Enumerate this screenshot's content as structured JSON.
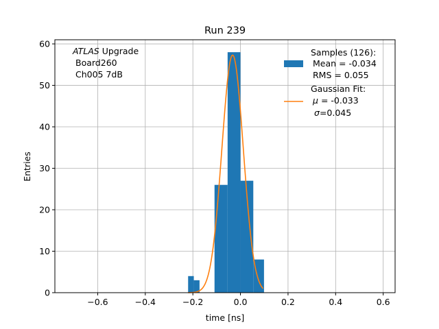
{
  "chart_data": {
    "type": "bar",
    "title": "Run 239",
    "xlabel": "time [ns]",
    "ylabel": "Entries",
    "xlim": [
      -0.78,
      0.65
    ],
    "ylim": [
      0,
      61
    ],
    "x_ticks": [
      -0.6,
      -0.4,
      -0.2,
      0.0,
      0.2,
      0.4,
      0.6
    ],
    "x_tick_labels": [
      "−0.6",
      "−0.4",
      "−0.2",
      "0.0",
      "0.2",
      "0.4",
      "0.6"
    ],
    "y_ticks": [
      0,
      10,
      20,
      30,
      40,
      50,
      60
    ],
    "y_tick_labels": [
      "0",
      "10",
      "20",
      "30",
      "40",
      "50",
      "60"
    ],
    "grid": true,
    "annotation": {
      "atlas": "ATLAS",
      "upgrade": "Upgrade",
      "board": "Board260",
      "channel": "Ch005 7dB"
    },
    "legend": {
      "position": "top-right",
      "samples_title": "Samples (126):",
      "samples_mean": "Mean = -0.034",
      "samples_rms": "RMS = 0.055",
      "fit_title": "Gaussian Fit:",
      "fit_mu_symbol": "μ",
      "fit_mu_value": "= -0.033",
      "fit_sigma_symbol": "σ",
      "fit_sigma_value": "=0.045"
    },
    "histogram": {
      "color": "#1f77b4",
      "bins": [
        {
          "x0": -0.22,
          "x1": -0.196,
          "count": 4
        },
        {
          "x0": -0.196,
          "x1": -0.172,
          "count": 3
        },
        {
          "x0": -0.172,
          "x1": -0.109,
          "count": 0
        },
        {
          "x0": -0.109,
          "x1": -0.054,
          "count": 26
        },
        {
          "x0": -0.054,
          "x1": 0.0,
          "count": 58
        },
        {
          "x0": 0.0,
          "x1": 0.054,
          "count": 27
        },
        {
          "x0": 0.054,
          "x1": 0.099,
          "count": 8
        }
      ]
    },
    "fit": {
      "color": "#ff7f0e",
      "amplitude": 57.3,
      "mu": -0.033,
      "sigma": 0.045,
      "x_range": [
        -0.22,
        0.095
      ]
    }
  }
}
